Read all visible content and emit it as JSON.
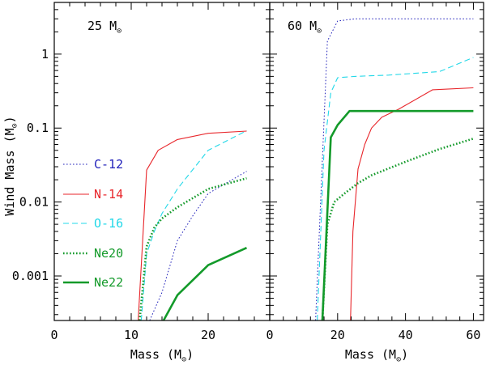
{
  "chart_data": {
    "type": "line",
    "ylabel": "Wind Mass (M",
    "ylabel_sub": "⊙",
    "ylabel_close": ")",
    "yscale": "log",
    "ylim": [
      0.00025,
      5
    ],
    "y_ticks": [
      0.001,
      0.01,
      0.1,
      1
    ],
    "y_tick_labels": [
      "0.001",
      "0.01",
      "0.1",
      "1"
    ],
    "panels": [
      {
        "title": "25 M",
        "title_sub": "⊙",
        "xlabel": "Mass (M",
        "xlabel_sub": "⊙",
        "xlabel_close": ")",
        "xlim": [
          0,
          28
        ],
        "x_ticks": [
          0,
          10,
          20
        ],
        "x_tick_labels": [
          "0",
          "10",
          "20"
        ],
        "series": [
          {
            "name": "C-12",
            "color": "#2222bb",
            "style": "dotted",
            "width": 1.0,
            "x": [
              12.4,
              14,
              16,
              18,
              20,
              25
            ],
            "y": [
              0.00025,
              0.0006,
              0.003,
              0.0065,
              0.013,
              0.026
            ]
          },
          {
            "name": "N-14",
            "color": "#e8262b",
            "style": "solid",
            "width": 1.1,
            "x": [
              10.9,
              12,
              13.5,
              16,
              20,
              25
            ],
            "y": [
              0.00025,
              0.027,
              0.05,
              0.07,
              0.085,
              0.091
            ]
          },
          {
            "name": "O-16",
            "color": "#22d8e8",
            "style": "dashed",
            "width": 1.1,
            "x": [
              11.3,
              12,
              13,
              14,
              16,
              20,
              25
            ],
            "y": [
              0.00025,
              0.002,
              0.004,
              0.007,
              0.015,
              0.05,
              0.092
            ]
          },
          {
            "name": "Ne20",
            "color": "#139a2a",
            "style": "dotted",
            "width": 2.6,
            "x": [
              11.1,
              12,
              13,
              14,
              16,
              20,
              25
            ],
            "y": [
              0.00025,
              0.0025,
              0.0045,
              0.006,
              0.0085,
              0.015,
              0.021
            ]
          },
          {
            "name": "Ne22",
            "color": "#139a2a",
            "style": "solid",
            "width": 2.6,
            "x": [
              14.2,
              16,
              20,
              25
            ],
            "y": [
              0.00025,
              0.00055,
              0.0014,
              0.0024
            ]
          }
        ]
      },
      {
        "title": "60 M",
        "title_sub": "⊙",
        "xlabel": "Mass (M",
        "xlabel_sub": "⊙",
        "xlabel_close": ")",
        "xlim": [
          0,
          63
        ],
        "x_ticks": [
          0,
          20,
          40,
          60
        ],
        "x_tick_labels": [
          "0",
          "20",
          "40",
          "60"
        ],
        "series": [
          {
            "name": "C-12",
            "color": "#2222bb",
            "style": "dotted",
            "width": 1.0,
            "x": [
              13.5,
              17,
              20,
              25,
              30,
              40,
              50,
              60
            ],
            "y": [
              0.00025,
              1.5,
              2.8,
              3.0,
              3.0,
              3.0,
              3.0,
              3.0
            ]
          },
          {
            "name": "N-14",
            "color": "#e8262b",
            "style": "solid",
            "width": 1.1,
            "x": [
              23.8,
              24.5,
              26,
              28,
              30,
              33,
              38,
              48,
              60
            ],
            "y": [
              0.00025,
              0.004,
              0.028,
              0.06,
              0.1,
              0.14,
              0.18,
              0.33,
              0.35
            ]
          },
          {
            "name": "O-16",
            "color": "#22d8e8",
            "style": "dashed",
            "width": 1.1,
            "x": [
              14,
              16,
              18,
              20,
              25,
              35,
              50,
              60
            ],
            "y": [
              0.00025,
              0.05,
              0.3,
              0.48,
              0.5,
              0.52,
              0.58,
              0.9
            ]
          },
          {
            "name": "Ne20",
            "color": "#139a2a",
            "style": "dotted",
            "width": 2.6,
            "x": [
              15.5,
              17,
              19,
              22,
              26,
              30,
              40,
              50,
              60
            ],
            "y": [
              0.00025,
              0.005,
              0.01,
              0.013,
              0.018,
              0.023,
              0.035,
              0.052,
              0.072
            ]
          },
          {
            "name": "Ne22",
            "color": "#139a2a",
            "style": "solid",
            "width": 2.6,
            "x": [
              15.5,
              18,
              20,
              23.5,
              30,
              40,
              50,
              60
            ],
            "y": [
              0.00025,
              0.075,
              0.11,
              0.17,
              0.17,
              0.17,
              0.17,
              0.17
            ]
          }
        ]
      }
    ]
  }
}
